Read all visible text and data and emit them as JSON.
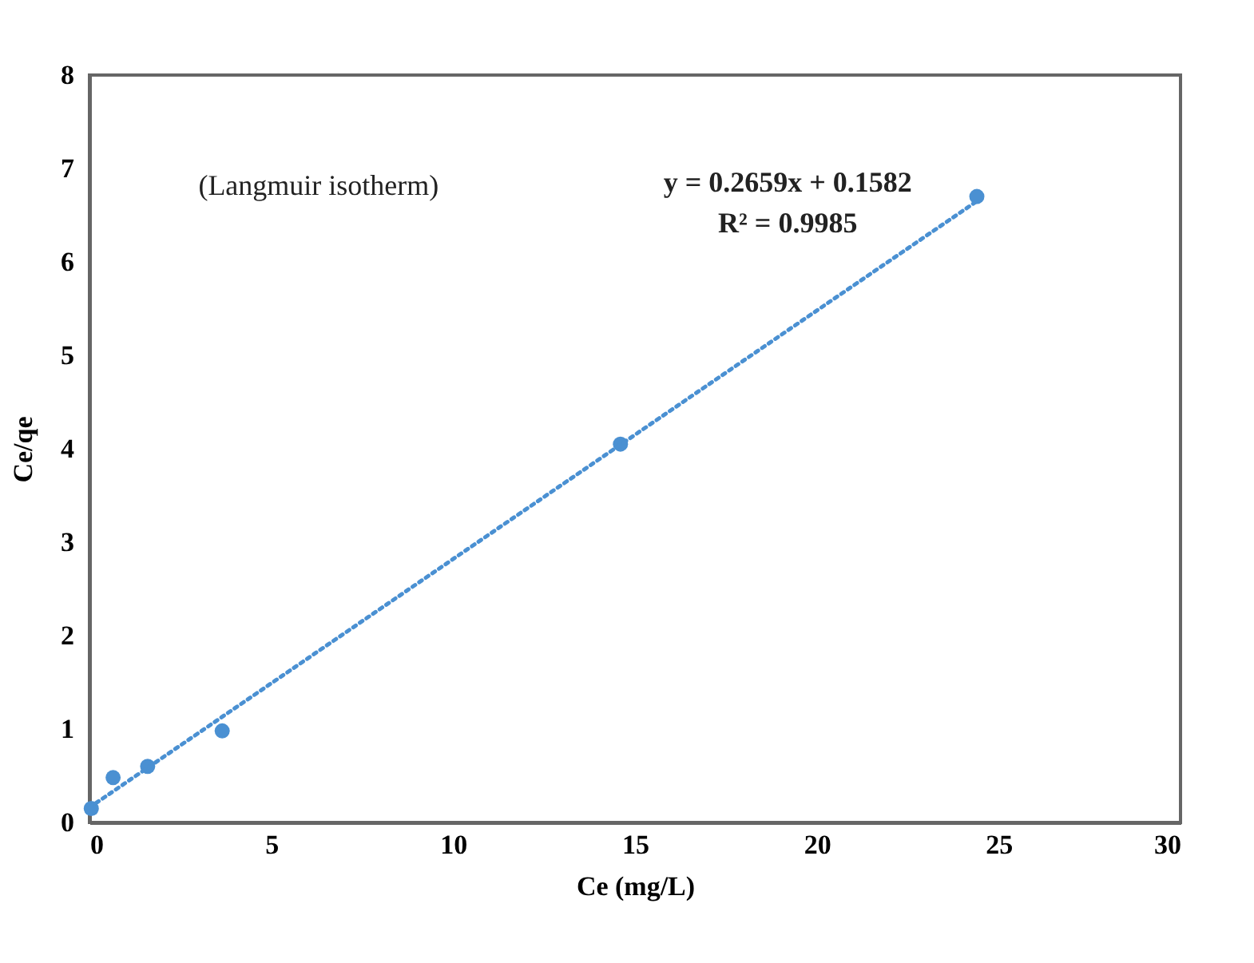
{
  "chart_data": {
    "type": "scatter",
    "xlabel": "Ce (mg/L)",
    "ylabel": "Ce/qe",
    "xlim": [
      0,
      30
    ],
    "xticks": [
      0,
      5,
      10,
      15,
      20,
      25,
      30
    ],
    "ylim": [
      0,
      8
    ],
    "yticks": [
      0,
      1,
      2,
      3,
      4,
      5,
      6,
      7,
      8
    ],
    "grid": false,
    "annotations": [
      "(Langmuir isotherm)",
      "y = 0.2659x + 0.1582",
      "R² = 0.9985"
    ],
    "series": [
      {
        "color": "#4a90d2",
        "marker": "circle",
        "x": [
          0.05,
          0.65,
          1.6,
          3.65,
          14.6,
          24.4
        ],
        "values": [
          0.15,
          0.48,
          0.6,
          0.98,
          4.05,
          6.7
        ]
      },
      {
        "type": "line",
        "color": "#4a90d2",
        "line_style": "dotted",
        "x": [
          0,
          24.4
        ],
        "values": [
          0.16,
          6.65
        ]
      }
    ]
  }
}
